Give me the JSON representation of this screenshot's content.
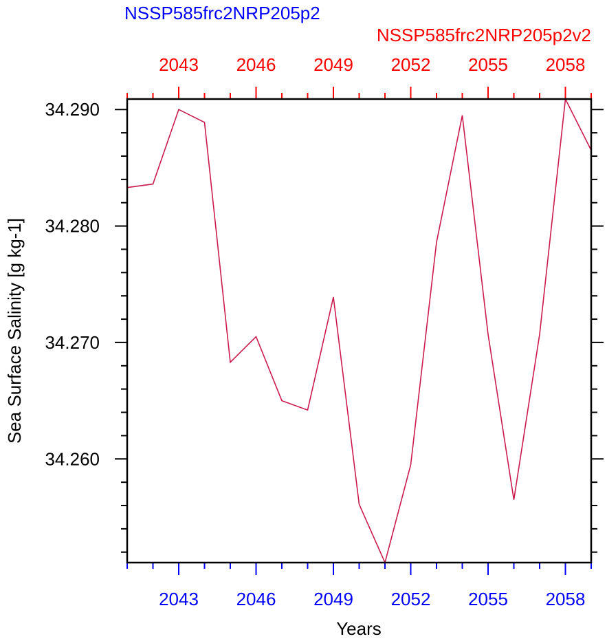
{
  "colors": {
    "left_title": "#0000ff",
    "right_title": "#ff0000",
    "line": "#cc1a4d",
    "bottom_ticks": "#0000ff",
    "top_ticks": "#ff0000",
    "axis": "#000000"
  },
  "chart_data": {
    "type": "line",
    "title_left": "NSSP585frc2NRP205p2",
    "title_right": "NSSP585frc2NRP205p2v2",
    "xlabel": "Years",
    "ylabel": "Sea Surface Salinity [g kg-1]",
    "xlim": [
      2041,
      2059
    ],
    "ylim": [
      34.2511,
      34.2909
    ],
    "x_ticks": [
      2043,
      2046,
      2049,
      2052,
      2055,
      2058
    ],
    "x_tick_labels": [
      "2043",
      "2046",
      "2049",
      "2052",
      "2055",
      "2058"
    ],
    "y_ticks": [
      34.26,
      34.27,
      34.28,
      34.29
    ],
    "y_tick_labels": [
      "34.260",
      "34.270",
      "34.280",
      "34.290"
    ],
    "grid": false,
    "series": [
      {
        "x": [
          2041,
          2042,
          2043,
          2044,
          2045,
          2046,
          2047,
          2048,
          2049,
          2050,
          2051,
          2052,
          2053,
          2054,
          2055,
          2056,
          2057,
          2058,
          2059
        ],
        "values": [
          34.2833,
          34.2836,
          34.29,
          34.2889,
          34.2683,
          34.2705,
          34.265,
          34.2642,
          34.2739,
          34.2561,
          34.2511,
          34.2595,
          34.2786,
          34.2895,
          34.2707,
          34.2565,
          34.2707,
          34.2909,
          34.2865
        ]
      }
    ]
  }
}
